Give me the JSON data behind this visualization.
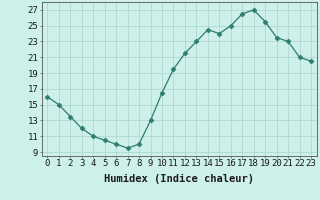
{
  "x": [
    0,
    1,
    2,
    3,
    4,
    5,
    6,
    7,
    8,
    9,
    10,
    11,
    12,
    13,
    14,
    15,
    16,
    17,
    18,
    19,
    20,
    21,
    22,
    23
  ],
  "y": [
    16,
    15,
    13.5,
    12,
    11,
    10.5,
    10,
    9.5,
    10,
    13,
    16.5,
    19.5,
    21.5,
    23,
    24.5,
    24,
    25,
    26.5,
    27,
    25.5,
    23.5,
    23,
    21,
    20.5
  ],
  "line_color": "#2e7d6d",
  "marker": "D",
  "marker_size": 2.5,
  "bg_color": "#cef0ea",
  "grid_color": "#b0d8d0",
  "xlabel": "Humidex (Indice chaleur)",
  "xlabel_fontsize": 7.5,
  "ylabel_ticks": [
    9,
    11,
    13,
    15,
    17,
    19,
    21,
    23,
    25,
    27
  ],
  "xlim": [
    -0.5,
    23.5
  ],
  "ylim": [
    8.5,
    28
  ],
  "tick_fontsize": 6.5,
  "lw": 0.9
}
